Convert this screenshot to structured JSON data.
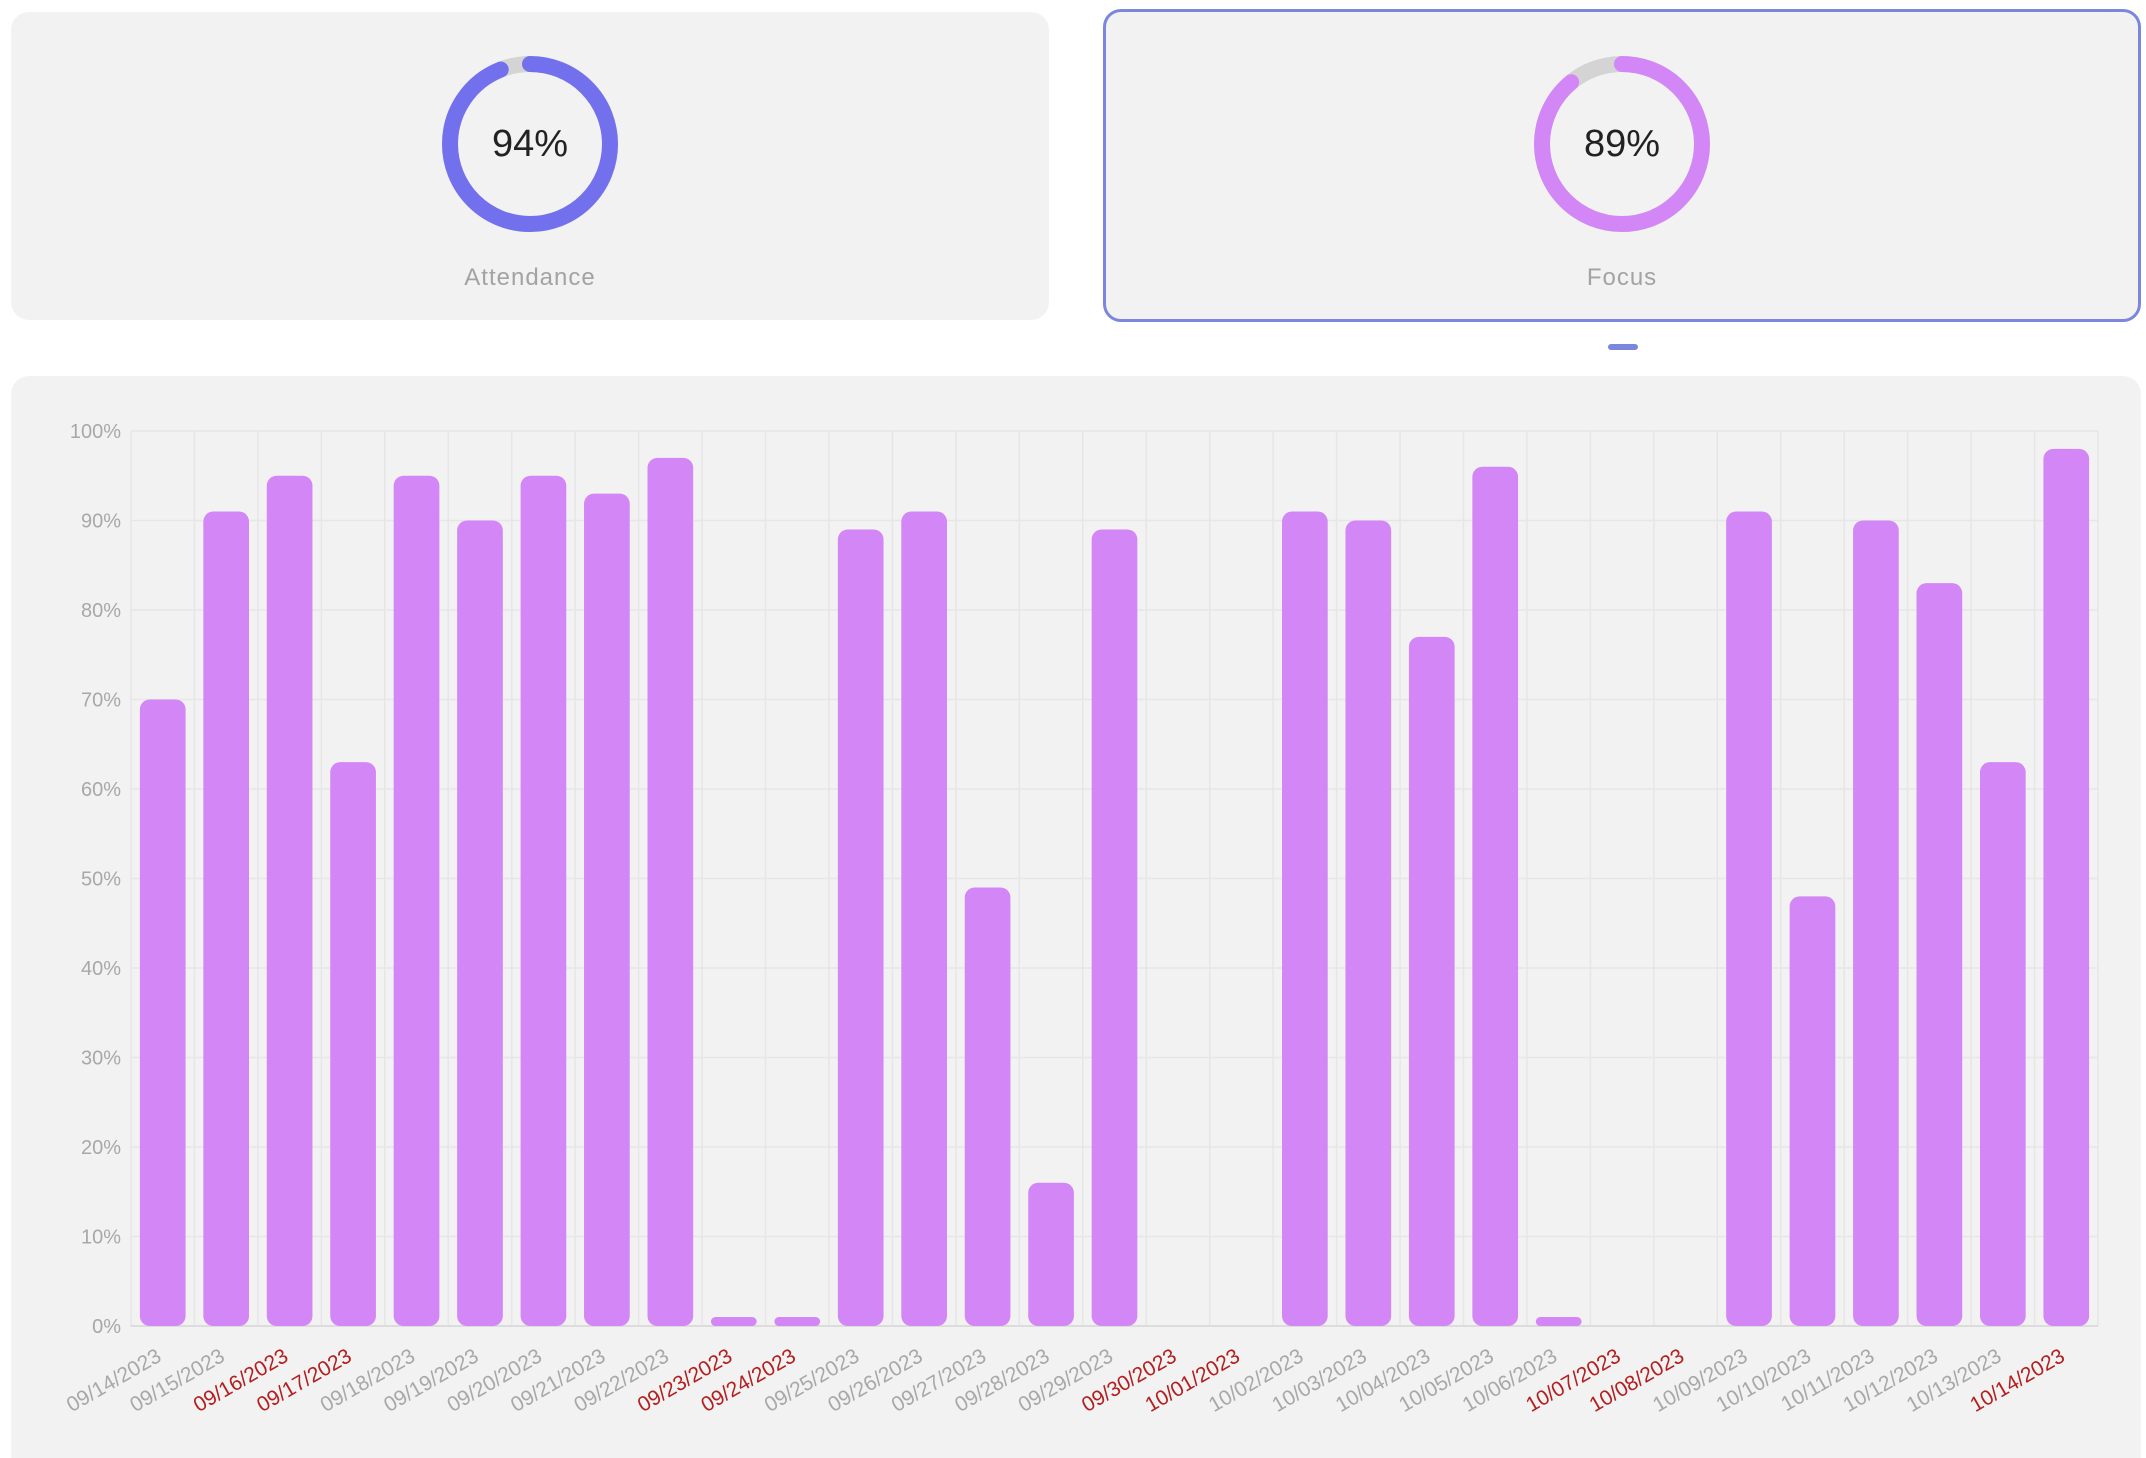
{
  "cards": [
    {
      "label": "Attendance",
      "value_text": "94%",
      "value": 94,
      "color": "#7370ee",
      "selected": false
    },
    {
      "label": "Focus",
      "value_text": "89%",
      "value": 89,
      "color": "#d386f5",
      "selected": true
    }
  ],
  "colors": {
    "bar": "#d386f5",
    "weekday_label": "#a8a8a8",
    "weekend_label": "#b31f1f",
    "grid": "#e6e6e6",
    "ring_track": "#d4d4d4",
    "selected_border": "#7a87dd"
  },
  "chart_data": {
    "type": "bar",
    "title": "",
    "xlabel": "",
    "ylabel": "",
    "ylim": [
      0,
      100
    ],
    "y_ticks": [
      "0%",
      "10%",
      "20%",
      "30%",
      "40%",
      "50%",
      "60%",
      "70%",
      "80%",
      "90%",
      "100%"
    ],
    "grid": true,
    "categories": [
      "09/14/2023",
      "09/15/2023",
      "09/16/2023",
      "09/17/2023",
      "09/18/2023",
      "09/19/2023",
      "09/20/2023",
      "09/21/2023",
      "09/22/2023",
      "09/23/2023",
      "09/24/2023",
      "09/25/2023",
      "09/26/2023",
      "09/27/2023",
      "09/28/2023",
      "09/29/2023",
      "09/30/2023",
      "10/01/2023",
      "10/02/2023",
      "10/03/2023",
      "10/04/2023",
      "10/05/2023",
      "10/06/2023",
      "10/07/2023",
      "10/08/2023",
      "10/09/2023",
      "10/10/2023",
      "10/11/2023",
      "10/12/2023",
      "10/13/2023",
      "10/14/2023"
    ],
    "weekend": [
      false,
      false,
      true,
      true,
      false,
      false,
      false,
      false,
      false,
      true,
      true,
      false,
      false,
      false,
      false,
      false,
      true,
      true,
      false,
      false,
      false,
      false,
      false,
      true,
      true,
      false,
      false,
      false,
      false,
      false,
      true
    ],
    "values": [
      70,
      91,
      95,
      63,
      95,
      90,
      95,
      93,
      97,
      1,
      1,
      89,
      91,
      49,
      16,
      89,
      null,
      null,
      91,
      90,
      77,
      96,
      1,
      null,
      null,
      91,
      48,
      90,
      83,
      63,
      98
    ]
  }
}
